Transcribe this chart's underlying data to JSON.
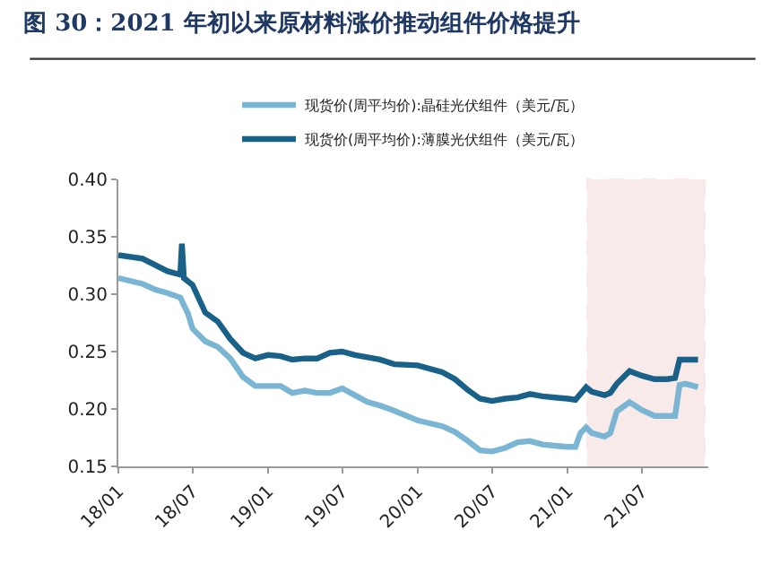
{
  "chart_data": {
    "type": "line",
    "title": "图 30：2021 年初以来原材料涨价推动组件价格提升",
    "legend": "top",
    "series": [
      {
        "name": "现货价(周平均价):晶硅光伏组件（美元/瓦）",
        "color": "#7ab6d3",
        "x": [
          "2018-01-01",
          "2018-03-01",
          "2018-04-01",
          "2018-05-01",
          "2018-06-01",
          "2018-06-20",
          "2018-07-01",
          "2018-08-01",
          "2018-09-01",
          "2018-10-01",
          "2018-11-01",
          "2018-12-01",
          "2019-01-01",
          "2019-02-01",
          "2019-03-01",
          "2019-04-01",
          "2019-05-01",
          "2019-06-01",
          "2019-07-01",
          "2019-08-01",
          "2019-09-01",
          "2019-10-01",
          "2019-11-01",
          "2020-01-01",
          "2020-03-01",
          "2020-04-01",
          "2020-05-01",
          "2020-06-01",
          "2020-07-01",
          "2020-08-01",
          "2020-09-01",
          "2020-10-01",
          "2020-11-01",
          "2020-12-01",
          "2021-01-01",
          "2021-01-20",
          "2021-02-01",
          "2021-02-15",
          "2021-03-01",
          "2021-04-01",
          "2021-04-15",
          "2021-05-01",
          "2021-06-01",
          "2021-07-01",
          "2021-08-01",
          "2021-09-01",
          "2021-09-20",
          "2021-10-01",
          "2021-10-15",
          "2021-11-15"
        ],
        "values": [
          0.314,
          0.309,
          0.304,
          0.301,
          0.297,
          0.283,
          0.27,
          0.259,
          0.254,
          0.244,
          0.228,
          0.22,
          0.22,
          0.22,
          0.214,
          0.216,
          0.214,
          0.214,
          0.218,
          0.212,
          0.206,
          0.203,
          0.199,
          0.19,
          0.185,
          0.18,
          0.1725,
          0.164,
          0.163,
          0.166,
          0.171,
          0.172,
          0.169,
          0.168,
          0.167,
          0.167,
          0.179,
          0.184,
          0.179,
          0.176,
          0.179,
          0.198,
          0.206,
          0.199,
          0.194,
          0.194,
          0.194,
          0.221,
          0.222,
          0.219
        ]
      },
      {
        "name": "现货价(周平均价):薄膜光伏组件（美元/瓦）",
        "color": "#1a6189",
        "x": [
          "2018-01-01",
          "2018-03-01",
          "2018-05-01",
          "2018-06-01",
          "2018-06-05",
          "2018-06-10",
          "2018-07-01",
          "2018-08-01",
          "2018-09-01",
          "2018-10-01",
          "2018-11-01",
          "2018-12-01",
          "2019-01-01",
          "2019-02-01",
          "2019-03-01",
          "2019-04-01",
          "2019-05-01",
          "2019-06-01",
          "2019-07-01",
          "2019-08-01",
          "2019-09-01",
          "2019-10-01",
          "2019-11-05",
          "2020-01-01",
          "2020-03-01",
          "2020-04-01",
          "2020-05-01",
          "2020-06-01",
          "2020-07-01",
          "2020-08-01",
          "2020-09-01",
          "2020-10-01",
          "2020-11-01",
          "2020-12-01",
          "2021-01-01",
          "2021-01-20",
          "2021-02-15",
          "2021-03-01",
          "2021-04-01",
          "2021-04-15",
          "2021-05-01",
          "2021-06-01",
          "2021-07-01",
          "2021-08-01",
          "2021-09-01",
          "2021-09-20",
          "2021-10-01",
          "2021-11-01",
          "2021-11-15"
        ],
        "values": [
          0.334,
          0.331,
          0.32,
          0.317,
          0.344,
          0.314,
          0.308,
          0.284,
          0.276,
          0.261,
          0.249,
          0.244,
          0.247,
          0.246,
          0.243,
          0.244,
          0.244,
          0.249,
          0.25,
          0.247,
          0.245,
          0.243,
          0.239,
          0.238,
          0.232,
          0.226,
          0.217,
          0.209,
          0.207,
          0.209,
          0.21,
          0.213,
          0.211,
          0.21,
          0.209,
          0.208,
          0.219,
          0.215,
          0.212,
          0.214,
          0.222,
          0.233,
          0.229,
          0.226,
          0.226,
          0.227,
          0.243,
          0.243,
          0.243
        ]
      }
    ],
    "xlim": [
      "2018-01-01",
      "2021-12-10"
    ],
    "xticks": [
      {
        "value": "2018-01-01",
        "label": "18/01"
      },
      {
        "value": "2018-07-01",
        "label": "18/07"
      },
      {
        "value": "2019-01-01",
        "label": "19/01"
      },
      {
        "value": "2019-07-01",
        "label": "19/07"
      },
      {
        "value": "2020-01-01",
        "label": "20/01"
      },
      {
        "value": "2020-07-01",
        "label": "20/07"
      },
      {
        "value": "2021-01-01",
        "label": "21/01"
      },
      {
        "value": "2021-07-01",
        "label": "21/07"
      }
    ],
    "ylim": [
      0.15,
      0.4
    ],
    "yticks": [
      {
        "value": 0.15,
        "label": "0.15"
      },
      {
        "value": 0.2,
        "label": "0.20"
      },
      {
        "value": 0.25,
        "label": "0.25"
      },
      {
        "value": 0.3,
        "label": "0.30"
      },
      {
        "value": 0.35,
        "label": "0.35"
      },
      {
        "value": 0.4,
        "label": "0.40"
      }
    ],
    "bands": [
      {
        "axis": "x",
        "from": "2021-02-18",
        "to": "2021-12-01",
        "color": "#c00000"
      }
    ],
    "grid": false,
    "line_style": "solid",
    "marker": "none"
  }
}
